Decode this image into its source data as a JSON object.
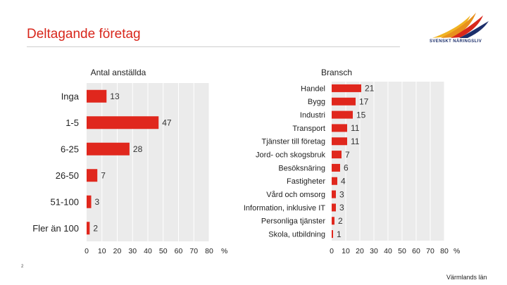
{
  "slide": {
    "title": "Deltagande företag",
    "logo_text": "SVENSKT NÄRINGSLIV",
    "page_number": "2",
    "footer": "Värmlands län",
    "colors": {
      "title": "#d8271c",
      "bar": "#e0271d",
      "plot_bg": "#ebebeb",
      "gridline": "#ffffff"
    }
  },
  "chart_data": [
    {
      "type": "bar",
      "orientation": "horizontal",
      "title": "Antal anställda",
      "categories": [
        "Inga",
        "1-5",
        "6-25",
        "26-50",
        "51-100",
        "Fler än 100"
      ],
      "values": [
        13,
        47,
        28,
        7,
        3,
        2
      ],
      "xlim": [
        0,
        80
      ],
      "xticks": [
        "0",
        "10",
        "20",
        "30",
        "40",
        "50",
        "60",
        "70",
        "80"
      ],
      "unit": "%",
      "grid": true
    },
    {
      "type": "bar",
      "orientation": "horizontal",
      "title": "Bransch",
      "categories": [
        "Handel",
        "Bygg",
        "Industri",
        "Transport",
        "Tjänster till företag",
        "Jord- och skogsbruk",
        "Besöksnäring",
        "Fastigheter",
        "Vård och omsorg",
        "Information, inklusive IT",
        "Personliga tjänster",
        "Skola, utbildning"
      ],
      "values": [
        21,
        17,
        15,
        11,
        11,
        7,
        6,
        4,
        3,
        3,
        2,
        1
      ],
      "xlim": [
        0,
        80
      ],
      "xticks": [
        "0",
        "10",
        "20",
        "30",
        "40",
        "50",
        "60",
        "70",
        "80"
      ],
      "unit": "%",
      "grid": true
    }
  ]
}
